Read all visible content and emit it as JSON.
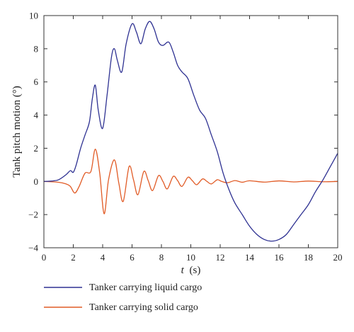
{
  "chart_data": {
    "type": "line",
    "xlabel_var": "t",
    "xlabel_unit": "(s)",
    "ylabel": "Tank pitch motion (°)",
    "xlim": [
      0,
      20
    ],
    "ylim": [
      -4,
      10
    ],
    "xticks": [
      0,
      2,
      4,
      6,
      8,
      10,
      12,
      14,
      16,
      18,
      20
    ],
    "yticks": [
      -4,
      -2,
      0,
      2,
      4,
      6,
      8,
      10
    ],
    "grid": false,
    "legend_position": "bottom-left, below plot",
    "series": [
      {
        "name": "Tanker carrying liquid cargo",
        "color": "#2e3192",
        "x": [
          0,
          0.5,
          1.0,
          1.5,
          1.8,
          2.0,
          2.2,
          2.5,
          2.8,
          3.1,
          3.3,
          3.5,
          3.7,
          4.0,
          4.3,
          4.6,
          4.8,
          5.0,
          5.3,
          5.6,
          6.0,
          6.3,
          6.6,
          6.9,
          7.2,
          7.5,
          7.8,
          8.1,
          8.5,
          8.8,
          9.1,
          9.4,
          9.8,
          10.2,
          10.6,
          11.0,
          11.4,
          11.8,
          12.2,
          12.6,
          13.0,
          13.5,
          14.0,
          14.5,
          15.0,
          15.5,
          16.0,
          16.5,
          17.0,
          17.5,
          18.0,
          18.5,
          19.0,
          19.5,
          20.0
        ],
        "values": [
          0,
          0.02,
          0.1,
          0.4,
          0.65,
          0.55,
          1.0,
          2.0,
          2.8,
          3.6,
          5.0,
          5.8,
          4.3,
          3.2,
          5.2,
          7.5,
          8.0,
          7.3,
          6.6,
          8.3,
          9.5,
          9.0,
          8.3,
          9.2,
          9.65,
          9.2,
          8.4,
          8.2,
          8.4,
          7.8,
          7.0,
          6.6,
          6.2,
          5.2,
          4.3,
          3.8,
          2.8,
          1.8,
          0.5,
          -0.5,
          -1.3,
          -2.0,
          -2.7,
          -3.2,
          -3.5,
          -3.6,
          -3.5,
          -3.2,
          -2.6,
          -2.0,
          -1.4,
          -0.6,
          0.1,
          0.9,
          1.7
        ]
      },
      {
        "name": "Tanker carrying solid cargo",
        "color": "#e15b26",
        "x": [
          0,
          1.0,
          1.5,
          1.8,
          2.1,
          2.4,
          2.8,
          3.2,
          3.5,
          3.8,
          4.1,
          4.4,
          4.8,
          5.1,
          5.4,
          5.8,
          6.1,
          6.4,
          6.8,
          7.1,
          7.4,
          7.8,
          8.1,
          8.4,
          8.8,
          9.1,
          9.4,
          9.8,
          10.1,
          10.4,
          10.8,
          11.1,
          11.4,
          11.8,
          12.1,
          12.5,
          13.0,
          13.5,
          14.0,
          15.0,
          16.0,
          17.0,
          18.0,
          19.0,
          20.0
        ],
        "values": [
          0,
          -0.05,
          -0.15,
          -0.3,
          -0.7,
          -0.3,
          0.5,
          0.6,
          1.95,
          0.5,
          -1.95,
          0.1,
          1.3,
          -0.1,
          -1.2,
          0.9,
          0.1,
          -0.8,
          0.6,
          0.05,
          -0.55,
          0.35,
          0.0,
          -0.45,
          0.3,
          0.05,
          -0.3,
          0.25,
          0.05,
          -0.2,
          0.15,
          0.0,
          -0.15,
          0.1,
          0.0,
          -0.08,
          0.05,
          -0.05,
          0.04,
          -0.04,
          0.03,
          -0.03,
          0.02,
          -0.02,
          0.0
        ]
      }
    ]
  }
}
